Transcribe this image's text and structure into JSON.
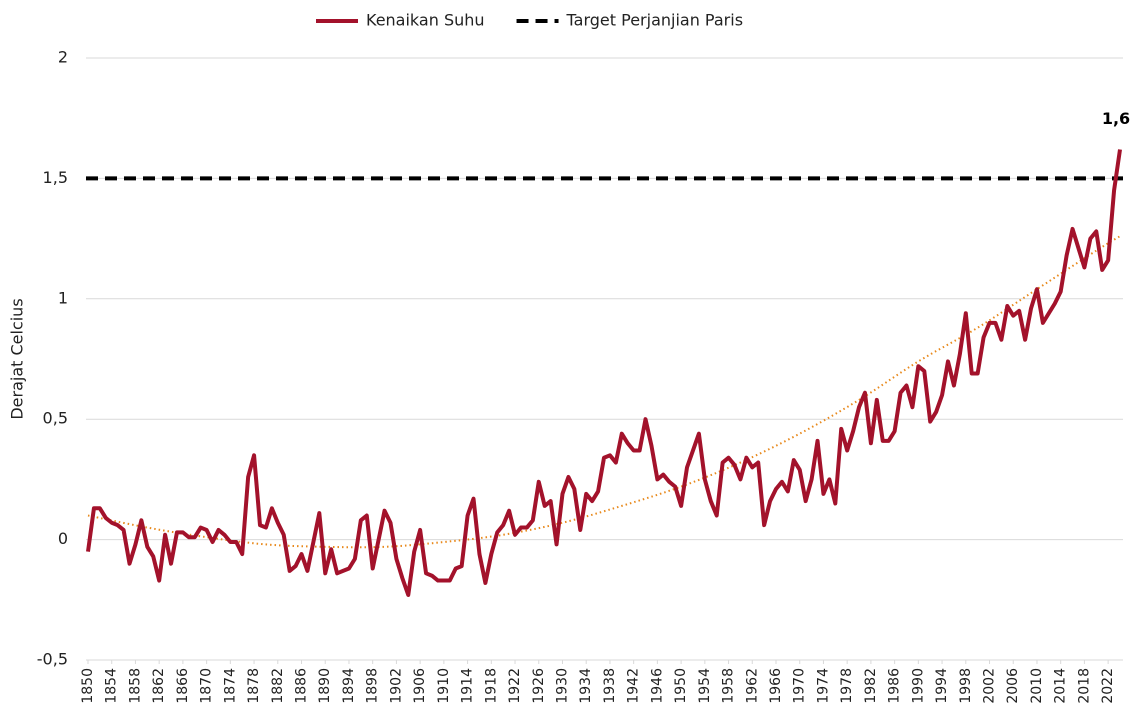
{
  "chart_data": {
    "type": "line",
    "y_label": "Derajat Celcius",
    "x": [
      1850,
      1851,
      1852,
      1853,
      1854,
      1855,
      1856,
      1857,
      1858,
      1859,
      1860,
      1861,
      1862,
      1863,
      1864,
      1865,
      1866,
      1867,
      1868,
      1869,
      1870,
      1871,
      1872,
      1873,
      1874,
      1875,
      1876,
      1877,
      1878,
      1879,
      1880,
      1881,
      1882,
      1883,
      1884,
      1885,
      1886,
      1887,
      1888,
      1889,
      1890,
      1891,
      1892,
      1893,
      1894,
      1895,
      1896,
      1897,
      1898,
      1899,
      1900,
      1901,
      1902,
      1903,
      1904,
      1905,
      1906,
      1907,
      1908,
      1909,
      1910,
      1911,
      1912,
      1913,
      1914,
      1915,
      1916,
      1917,
      1918,
      1919,
      1920,
      1921,
      1922,
      1923,
      1924,
      1925,
      1926,
      1927,
      1928,
      1929,
      1930,
      1931,
      1932,
      1933,
      1934,
      1935,
      1936,
      1937,
      1938,
      1939,
      1940,
      1941,
      1942,
      1943,
      1944,
      1945,
      1946,
      1947,
      1948,
      1949,
      1950,
      1951,
      1952,
      1953,
      1954,
      1955,
      1956,
      1957,
      1958,
      1959,
      1960,
      1961,
      1962,
      1963,
      1964,
      1965,
      1966,
      1967,
      1968,
      1969,
      1970,
      1971,
      1972,
      1973,
      1974,
      1975,
      1976,
      1977,
      1978,
      1979,
      1980,
      1981,
      1982,
      1983,
      1984,
      1985,
      1986,
      1987,
      1988,
      1989,
      1990,
      1991,
      1992,
      1993,
      1994,
      1995,
      1996,
      1997,
      1998,
      1999,
      2000,
      2001,
      2002,
      2003,
      2004,
      2005,
      2006,
      2007,
      2008,
      2009,
      2010,
      2011,
      2012,
      2013,
      2014,
      2015,
      2016,
      2017,
      2018,
      2019,
      2020,
      2021,
      2022,
      2023,
      2024
    ],
    "series": [
      {
        "name": "Kenaikan Suhu",
        "color": "#a3122b",
        "values": [
          -0.05,
          0.13,
          0.13,
          0.09,
          0.07,
          0.06,
          0.04,
          -0.1,
          -0.02,
          0.08,
          -0.03,
          -0.07,
          -0.17,
          0.02,
          -0.1,
          0.03,
          0.03,
          0.01,
          0.01,
          0.05,
          0.04,
          -0.01,
          0.04,
          0.02,
          -0.01,
          -0.01,
          -0.06,
          0.26,
          0.35,
          0.06,
          0.05,
          0.13,
          0.07,
          0.02,
          -0.13,
          -0.11,
          -0.06,
          -0.13,
          -0.01,
          0.11,
          -0.14,
          -0.04,
          -0.14,
          -0.13,
          -0.12,
          -0.08,
          0.08,
          0.1,
          -0.12,
          0.0,
          0.12,
          0.07,
          -0.08,
          -0.16,
          -0.23,
          -0.05,
          0.04,
          -0.14,
          -0.15,
          -0.17,
          -0.17,
          -0.17,
          -0.12,
          -0.11,
          0.1,
          0.17,
          -0.06,
          -0.18,
          -0.06,
          0.03,
          0.06,
          0.12,
          0.02,
          0.05,
          0.05,
          0.08,
          0.24,
          0.14,
          0.16,
          -0.02,
          0.19,
          0.26,
          0.21,
          0.04,
          0.19,
          0.16,
          0.2,
          0.34,
          0.35,
          0.32,
          0.44,
          0.4,
          0.37,
          0.37,
          0.5,
          0.39,
          0.25,
          0.27,
          0.24,
          0.22,
          0.14,
          0.3,
          0.37,
          0.44,
          0.25,
          0.16,
          0.1,
          0.32,
          0.34,
          0.31,
          0.25,
          0.34,
          0.3,
          0.32,
          0.06,
          0.16,
          0.21,
          0.24,
          0.2,
          0.33,
          0.29,
          0.16,
          0.25,
          0.41,
          0.19,
          0.25,
          0.15,
          0.46,
          0.37,
          0.45,
          0.55,
          0.61,
          0.4,
          0.58,
          0.41,
          0.41,
          0.45,
          0.61,
          0.64,
          0.55,
          0.72,
          0.7,
          0.49,
          0.53,
          0.6,
          0.74,
          0.64,
          0.77,
          0.94,
          0.69,
          0.69,
          0.84,
          0.9,
          0.9,
          0.83,
          0.97,
          0.93,
          0.95,
          0.83,
          0.96,
          1.04,
          0.9,
          0.94,
          0.98,
          1.03,
          1.18,
          1.29,
          1.21,
          1.13,
          1.25,
          1.28,
          1.12,
          1.16,
          1.45,
          1.62
        ]
      }
    ],
    "reference_line": {
      "name": "Target Perjanjian Paris",
      "value": 1.5,
      "color": "#000000"
    },
    "trendline": {
      "color": "#e8891c",
      "x": [
        1850,
        1860,
        1870,
        1880,
        1890,
        1900,
        1910,
        1920,
        1930,
        1940,
        1950,
        1960,
        1970,
        1980,
        1990,
        2000,
        2010,
        2020,
        2024
      ],
      "values": [
        0.1,
        0.05,
        0.01,
        -0.02,
        -0.03,
        -0.03,
        -0.01,
        0.02,
        0.07,
        0.14,
        0.22,
        0.32,
        0.44,
        0.58,
        0.74,
        0.88,
        1.04,
        1.2,
        1.26
      ]
    },
    "annotations": [
      {
        "text": "1,6",
        "x": 2024,
        "y": 1.62
      }
    ],
    "xlim": [
      1850,
      2024
    ],
    "xticks": [
      1850,
      1854,
      1858,
      1862,
      1866,
      1870,
      1874,
      1878,
      1882,
      1886,
      1890,
      1894,
      1898,
      1902,
      1906,
      1910,
      1914,
      1918,
      1922,
      1926,
      1930,
      1934,
      1938,
      1942,
      1946,
      1950,
      1954,
      1958,
      1962,
      1966,
      1970,
      1974,
      1978,
      1982,
      1986,
      1990,
      1994,
      1998,
      2002,
      2006,
      2010,
      2014,
      2018,
      2022
    ],
    "ylim": [
      -0.5,
      2
    ],
    "yticks": [
      {
        "value": -0.5,
        "label": "-0,5"
      },
      0,
      {
        "value": 0.5,
        "label": "0,5"
      },
      1,
      {
        "value": 1.5,
        "label": "1,5"
      },
      2
    ],
    "grid": true,
    "legend": "top"
  }
}
